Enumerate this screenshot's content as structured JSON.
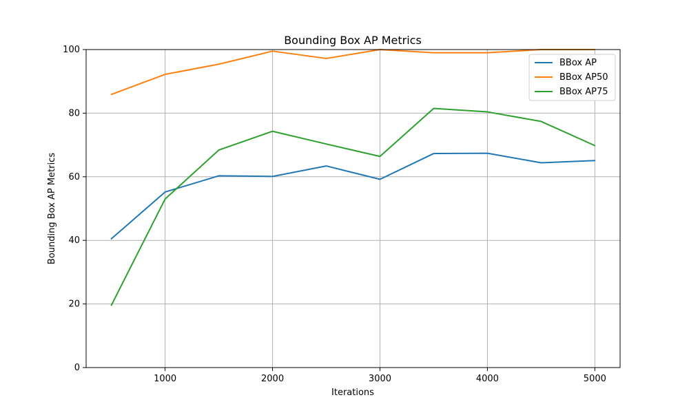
{
  "chart_data": {
    "type": "line",
    "title": "Bounding Box AP Metrics",
    "xlabel": "Iterations",
    "ylabel": "Bounding Box AP Metrics",
    "x": [
      500,
      1000,
      1500,
      2000,
      2500,
      3000,
      3500,
      4000,
      4500,
      5000
    ],
    "xlim": [
      265,
      5235
    ],
    "ylim": [
      0,
      100
    ],
    "xticks": [
      1000,
      2000,
      3000,
      4000,
      5000
    ],
    "yticks": [
      0,
      20,
      40,
      60,
      80,
      100
    ],
    "grid": true,
    "legend_position": "top-right",
    "series": [
      {
        "name": "BBox AP",
        "color": "#1f77b4",
        "values": [
          40.5,
          55.2,
          60.3,
          60.1,
          63.4,
          59.2,
          67.3,
          67.4,
          64.4,
          65.1
        ]
      },
      {
        "name": "BBox AP50",
        "color": "#ff7f0e",
        "values": [
          85.9,
          92.2,
          95.4,
          99.5,
          97.2,
          100.0,
          99.0,
          99.0,
          100.0,
          100.0
        ]
      },
      {
        "name": "BBox AP75",
        "color": "#2ca02c",
        "values": [
          19.6,
          53.0,
          68.4,
          74.3,
          70.3,
          66.4,
          81.5,
          80.4,
          77.4,
          69.8
        ]
      }
    ]
  }
}
